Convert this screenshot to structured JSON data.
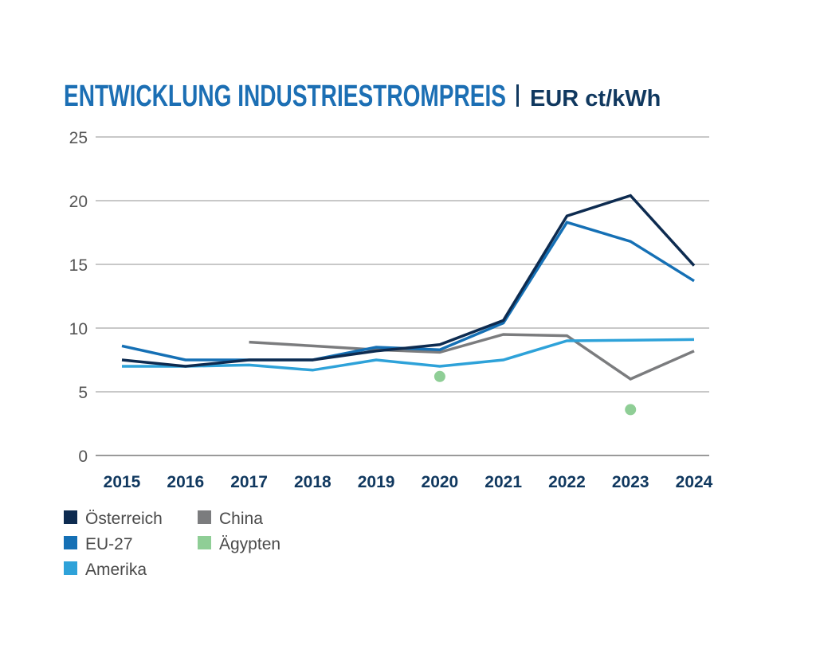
{
  "chart_data": {
    "type": "line",
    "title": "ENTWICKLUNG INDUSTRIESTROMPREIS",
    "unit": "EUR ct/kWh",
    "xlabel": "",
    "ylabel": "",
    "ylim": [
      0,
      25
    ],
    "yticks": [
      0,
      5,
      10,
      15,
      20,
      25
    ],
    "grid": true,
    "legend_position": "bottom-left",
    "categories": [
      "2015",
      "2016",
      "2017",
      "2018",
      "2019",
      "2020",
      "2021",
      "2022",
      "2023",
      "2024"
    ],
    "series": [
      {
        "name": "Österreich",
        "color": "#0d2b50",
        "kind": "line",
        "values": [
          7.5,
          7.0,
          7.5,
          7.5,
          8.2,
          8.7,
          10.6,
          18.8,
          20.4,
          14.9
        ]
      },
      {
        "name": "EU-27",
        "color": "#1570b5",
        "kind": "line",
        "values": [
          8.6,
          7.5,
          7.5,
          7.5,
          8.5,
          8.3,
          10.4,
          18.3,
          16.8,
          13.7
        ]
      },
      {
        "name": "Amerika",
        "color": "#2ea2d9",
        "kind": "line",
        "values": [
          7.0,
          7.0,
          7.1,
          6.7,
          7.5,
          7.0,
          7.5,
          9.0,
          9.05,
          9.1
        ]
      },
      {
        "name": "China",
        "color": "#7b7c7e",
        "kind": "line",
        "values": [
          null,
          null,
          8.9,
          8.6,
          8.3,
          8.1,
          9.5,
          9.4,
          6.0,
          8.2
        ]
      },
      {
        "name": "Ägypten",
        "color": "#8fce96",
        "kind": "points",
        "values": [
          null,
          null,
          null,
          null,
          null,
          6.2,
          null,
          null,
          3.6,
          null
        ]
      }
    ],
    "legend_order": [
      "Österreich",
      "China",
      "EU-27",
      "Ägypten",
      "Amerika"
    ]
  }
}
